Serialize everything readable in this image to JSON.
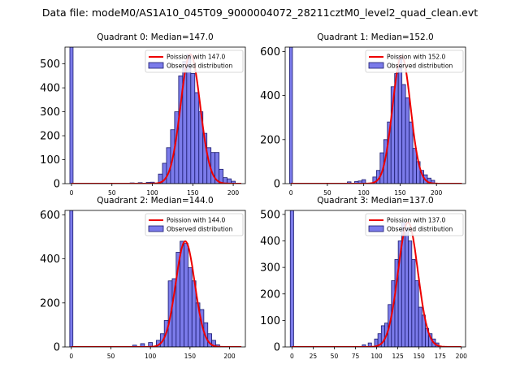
{
  "suptitle": "Data file: modeM0/AS1A10_045T09_9000004072_28211cztM0_level2_quad_clean.evt",
  "colors": {
    "hist_fill": "#7b7bea",
    "hist_edge": "#1a1a6e",
    "fit": "#ee0000"
  },
  "chart_data": [
    {
      "type": "bar",
      "title": "Quadrant 0: Median=147.0",
      "median": 147.0,
      "xlim": [
        -8,
        215
      ],
      "ylim": [
        0,
        570
      ],
      "xticks": [
        0,
        50,
        100,
        150,
        200
      ],
      "yticks": [
        0,
        100,
        200,
        300,
        400,
        500
      ],
      "bins": {
        "start": 107.5,
        "width": 5,
        "values": [
          40,
          85,
          150,
          225,
          300,
          450,
          510,
          540,
          460,
          380,
          300,
          210,
          150,
          130,
          130,
          60,
          25,
          20,
          10
        ]
      },
      "lowbars": [
        {
          "x": 75,
          "v": 3
        },
        {
          "x": 85,
          "v": 4
        },
        {
          "x": 95,
          "v": 5
        },
        {
          "x": 100,
          "v": 6
        }
      ],
      "edge_bar": {
        "x": 0,
        "v": 570
      },
      "legend": {
        "fit": "Poission with 147.0",
        "hist": "Observed distribution"
      }
    },
    {
      "type": "bar",
      "title": "Quadrant 1: Median=152.0",
      "median": 152.0,
      "xlim": [
        -8,
        240
      ],
      "ylim": [
        0,
        620
      ],
      "xticks": [
        0,
        50,
        100,
        150,
        200
      ],
      "yticks": [
        0,
        200,
        400,
        600
      ],
      "bins": {
        "start": 112.5,
        "width": 5,
        "values": [
          30,
          60,
          140,
          200,
          280,
          440,
          500,
          580,
          450,
          390,
          280,
          160,
          100,
          60,
          40,
          25,
          15
        ]
      },
      "lowbars": [
        {
          "x": 80,
          "v": 8
        },
        {
          "x": 90,
          "v": 10
        },
        {
          "x": 95,
          "v": 12
        },
        {
          "x": 100,
          "v": 18
        }
      ],
      "edge_bar": {
        "x": 0,
        "v": 620
      },
      "legend": {
        "fit": "Poission with 152.0",
        "hist": "Observed distribution"
      }
    },
    {
      "type": "bar",
      "title": "Quadrant 2: Median=144.0",
      "median": 144.0,
      "xlim": [
        -8,
        220
      ],
      "ylim": [
        0,
        620
      ],
      "xticks": [
        0,
        50,
        100,
        150,
        200
      ],
      "yticks": [
        0,
        200,
        400,
        600
      ],
      "bins": {
        "start": 107.5,
        "width": 5,
        "values": [
          30,
          60,
          120,
          300,
          310,
          430,
          480,
          470,
          360,
          300,
          200,
          170,
          110,
          60,
          30,
          10
        ]
      },
      "lowbars": [
        {
          "x": 80,
          "v": 8
        },
        {
          "x": 90,
          "v": 15
        },
        {
          "x": 100,
          "v": 20
        }
      ],
      "edge_bar": {
        "x": 0,
        "v": 620
      },
      "legend": {
        "fit": "Poission with 144.0",
        "hist": "Observed distribution"
      }
    },
    {
      "type": "bar",
      "title": "Quadrant 3: Median=137.0",
      "median": 137.0,
      "xlim": [
        -8,
        205
      ],
      "ylim": [
        0,
        515
      ],
      "xticks": [
        0,
        25,
        50,
        75,
        100,
        125,
        150,
        175,
        200
      ],
      "yticks": [
        0,
        100,
        200,
        300,
        400,
        500
      ],
      "bins": {
        "start": 97.5,
        "width": 4,
        "values": [
          30,
          50,
          80,
          90,
          160,
          250,
          330,
          400,
          470,
          450,
          400,
          330,
          250,
          150,
          120,
          70,
          50,
          30,
          15
        ]
      },
      "lowbars": [
        {
          "x": 85,
          "v": 8
        },
        {
          "x": 92,
          "v": 15
        }
      ],
      "edge_bar": {
        "x": 0,
        "v": 515
      },
      "legend": {
        "fit": "Poission with 137.0",
        "hist": "Observed distribution"
      }
    }
  ]
}
